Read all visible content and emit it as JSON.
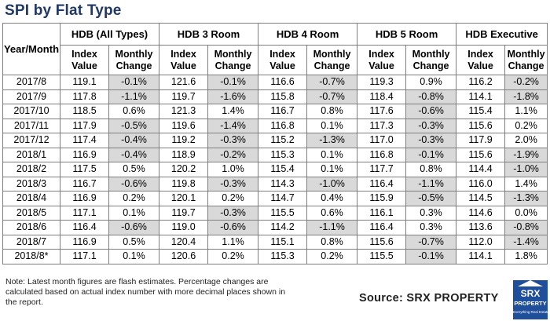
{
  "title": "SPI by Flat Type",
  "header": {
    "year_month": "Year/Month",
    "groups": [
      "HDB (All Types)",
      "HDB 3 Room",
      "HDB 4 Room",
      "HDB 5 Room",
      "HDB Executive"
    ],
    "index_value": "Index Value",
    "monthly_change": "Monthly Change"
  },
  "rows": [
    {
      "ym": "2017/8",
      "v": [
        "119.1",
        "-0.1%",
        "121.6",
        "-0.1%",
        "116.6",
        "-0.7%",
        "119.3",
        "0.9%",
        "116.2",
        "-0.2%"
      ]
    },
    {
      "ym": "2017/9",
      "v": [
        "117.8",
        "-1.1%",
        "119.7",
        "-1.6%",
        "115.8",
        "-0.7%",
        "118.4",
        "-0.8%",
        "114.1",
        "-1.8%"
      ]
    },
    {
      "ym": "2017/10",
      "v": [
        "118.5",
        "0.6%",
        "121.3",
        "1.4%",
        "116.7",
        "0.8%",
        "117.6",
        "-0.6%",
        "115.4",
        "1.1%"
      ]
    },
    {
      "ym": "2017/11",
      "v": [
        "117.9",
        "-0.5%",
        "119.6",
        "-1.4%",
        "116.8",
        "0.1%",
        "117.3",
        "-0.3%",
        "115.6",
        "0.2%"
      ]
    },
    {
      "ym": "2017/12",
      "v": [
        "117.4",
        "-0.4%",
        "119.2",
        "-0.3%",
        "115.2",
        "-1.3%",
        "117.0",
        "-0.3%",
        "117.9",
        "2.0%"
      ]
    },
    {
      "ym": "2018/1",
      "v": [
        "116.9",
        "-0.4%",
        "118.9",
        "-0.2%",
        "115.3",
        "0.1%",
        "116.8",
        "-0.1%",
        "115.6",
        "-1.9%"
      ]
    },
    {
      "ym": "2018/2",
      "v": [
        "117.5",
        "0.5%",
        "120.2",
        "1.0%",
        "115.4",
        "0.1%",
        "117.7",
        "0.8%",
        "114.4",
        "-1.0%"
      ]
    },
    {
      "ym": "2018/3",
      "v": [
        "116.7",
        "-0.6%",
        "119.8",
        "-0.3%",
        "114.3",
        "-1.0%",
        "116.4",
        "-1.1%",
        "116.0",
        "1.4%"
      ]
    },
    {
      "ym": "2018/4",
      "v": [
        "116.9",
        "0.2%",
        "120.1",
        "0.2%",
        "114.7",
        "0.4%",
        "115.9",
        "-0.5%",
        "114.5",
        "-1.3%"
      ]
    },
    {
      "ym": "2018/5",
      "v": [
        "117.1",
        "0.1%",
        "119.7",
        "-0.3%",
        "115.5",
        "0.6%",
        "116.1",
        "0.3%",
        "114.6",
        "0.0%"
      ]
    },
    {
      "ym": "2018/6",
      "v": [
        "116.4",
        "-0.6%",
        "119.0",
        "-0.6%",
        "114.2",
        "-1.1%",
        "116.4",
        "0.3%",
        "113.6",
        "-0.8%"
      ]
    },
    {
      "ym": "2018/7",
      "v": [
        "116.9",
        "0.5%",
        "120.4",
        "1.1%",
        "115.1",
        "0.8%",
        "115.6",
        "-0.7%",
        "112.0",
        "-1.4%"
      ]
    },
    {
      "ym": "2018/8*",
      "v": [
        "117.1",
        "0.1%",
        "120.6",
        "0.2%",
        "115.3",
        "0.2%",
        "115.5",
        "-0.1%",
        "114.1",
        "1.8%"
      ]
    }
  ],
  "note": "Note: Latest month figures are flash estimates. Percentage changes are calculated based on actual index number with more decimal places shown in the report.",
  "source": "Source:  SRX PROPERTY",
  "logo": {
    "mark": "SRX",
    "word": "PROPERTY",
    "tagline": "Everything Real Estate"
  },
  "colors": {
    "title": "#1f3864",
    "negative_shading": "#d9d9d9",
    "logo_bg": "#1f4e9a"
  }
}
